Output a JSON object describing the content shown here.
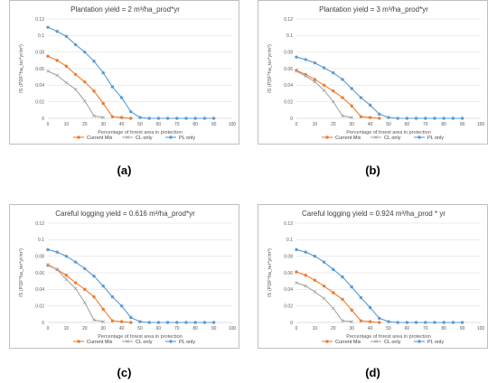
{
  "colors": {
    "current_mix": "#ED7D31",
    "cl_only": "#A5A5A5",
    "pl_only": "#5B9BD5",
    "grid": "#d9d9d9"
  },
  "panels": [
    {
      "caption": "(a)"
    },
    {
      "caption": "(b)"
    },
    {
      "caption": "(c)"
    },
    {
      "caption": "(d)"
    }
  ],
  "chart_data": [
    {
      "type": "line",
      "title": "Plantation yield = 2 m³/ha_prod*yr",
      "xlabel": "Percentage of forest area in protection",
      "ylabel": "IS (PDF*ha_ter*yr/m³)",
      "xlim": [
        0,
        100
      ],
      "ylim": [
        0,
        0.12
      ],
      "xticks": [
        "0",
        "10",
        "20",
        "30",
        "40",
        "50",
        "60",
        "70",
        "80",
        "90",
        "100"
      ],
      "yticks": [
        "0",
        "0.02",
        "0.04",
        "0.06",
        "0.08",
        "0.1",
        "0.12"
      ],
      "grid": true,
      "legend": "bottom",
      "series": [
        {
          "name": "Current Mix",
          "color_key": "current_mix",
          "marker": "circle",
          "x": [
            0,
            5,
            10,
            15,
            20,
            25,
            30,
            35,
            40,
            45
          ],
          "y": [
            0.075,
            0.07,
            0.063,
            0.053,
            0.044,
            0.033,
            0.018,
            0.002,
            0.001,
            0.0
          ]
        },
        {
          "name": "CL only",
          "color_key": "cl_only",
          "marker": "x",
          "x": [
            0,
            5,
            10,
            15,
            20,
            25,
            30
          ],
          "y": [
            0.057,
            0.052,
            0.043,
            0.035,
            0.021,
            0.003,
            0.001
          ]
        },
        {
          "name": "PL only",
          "color_key": "pl_only",
          "marker": "circle",
          "x": [
            0,
            5,
            10,
            15,
            20,
            25,
            30,
            35,
            40,
            45,
            50,
            55,
            60,
            65,
            70,
            75,
            80,
            85,
            90
          ],
          "y": [
            0.11,
            0.105,
            0.099,
            0.089,
            0.08,
            0.069,
            0.055,
            0.038,
            0.025,
            0.008,
            0.001,
            0.0,
            0.0,
            0.0,
            0.0,
            0.0,
            0.0,
            0.0,
            0.0
          ]
        }
      ]
    },
    {
      "type": "line",
      "title": "Plantation yield = 3 m³/ha_prod*yr",
      "xlabel": "Percentage of forest area in protection",
      "ylabel": "IS (PDF*ha_ter*yr/m³)",
      "xlim": [
        0,
        100
      ],
      "ylim": [
        0,
        0.12
      ],
      "xticks": [
        "0",
        "10",
        "20",
        "30",
        "40",
        "50",
        "60",
        "70",
        "80",
        "90",
        "100"
      ],
      "yticks": [
        "0",
        "0.02",
        "0.04",
        "0.06",
        "0.08",
        "0.1",
        "0.12"
      ],
      "grid": true,
      "legend": "bottom",
      "series": [
        {
          "name": "Current Mix",
          "color_key": "current_mix",
          "marker": "circle",
          "x": [
            0,
            5,
            10,
            15,
            20,
            25,
            30,
            35,
            40,
            45
          ],
          "y": [
            0.058,
            0.053,
            0.047,
            0.04,
            0.033,
            0.025,
            0.015,
            0.002,
            0.001,
            0.0
          ]
        },
        {
          "name": "CL only",
          "color_key": "cl_only",
          "marker": "x",
          "x": [
            0,
            5,
            10,
            15,
            20,
            25,
            30
          ],
          "y": [
            0.057,
            0.051,
            0.044,
            0.034,
            0.02,
            0.003,
            0.001
          ]
        },
        {
          "name": "PL only",
          "color_key": "pl_only",
          "marker": "circle",
          "x": [
            0,
            5,
            10,
            15,
            20,
            25,
            30,
            35,
            40,
            45,
            50,
            55,
            60,
            65,
            70,
            75,
            80,
            85,
            90
          ],
          "y": [
            0.074,
            0.071,
            0.067,
            0.061,
            0.055,
            0.047,
            0.036,
            0.025,
            0.016,
            0.005,
            0.001,
            0.0,
            0.0,
            0.0,
            0.0,
            0.0,
            0.0,
            0.0,
            0.0
          ]
        }
      ]
    },
    {
      "type": "line",
      "title": "Careful logging yield = 0.616 m³/ha_prod*yr",
      "xlabel": "Percentage of forest area in protection",
      "ylabel": "IS (PDF*ha_ter*yr/m³)",
      "xlim": [
        0,
        100
      ],
      "ylim": [
        0,
        0.12
      ],
      "xticks": [
        "0",
        "10",
        "20",
        "30",
        "40",
        "50",
        "60",
        "70",
        "80",
        "90",
        "100"
      ],
      "yticks": [
        "0",
        "0.02",
        "0.04",
        "0.06",
        "0.08",
        "0.1",
        "0.12"
      ],
      "grid": true,
      "legend": "bottom",
      "series": [
        {
          "name": "Current Mix",
          "color_key": "current_mix",
          "marker": "circle",
          "x": [
            0,
            5,
            10,
            15,
            20,
            25,
            30,
            35,
            40,
            45
          ],
          "y": [
            0.069,
            0.064,
            0.057,
            0.048,
            0.04,
            0.031,
            0.016,
            0.002,
            0.001,
            0.0
          ]
        },
        {
          "name": "CL only",
          "color_key": "cl_only",
          "marker": "x",
          "x": [
            0,
            5,
            10,
            15,
            20,
            25,
            30
          ],
          "y": [
            0.07,
            0.064,
            0.052,
            0.041,
            0.024,
            0.003,
            0.001
          ]
        },
        {
          "name": "PL only",
          "color_key": "pl_only",
          "marker": "circle",
          "x": [
            0,
            5,
            10,
            15,
            20,
            25,
            30,
            35,
            40,
            45,
            50,
            55,
            60,
            65,
            70,
            75,
            80,
            85,
            90
          ],
          "y": [
            0.088,
            0.085,
            0.08,
            0.073,
            0.065,
            0.056,
            0.044,
            0.031,
            0.02,
            0.006,
            0.001,
            0.0,
            0.0,
            0.0,
            0.0,
            0.0,
            0.0,
            0.0,
            0.0
          ]
        }
      ]
    },
    {
      "type": "line",
      "title": "Careful logging yield = 0.924 m³/ha_prod * yr",
      "xlabel": "Percentage of forest area in protection",
      "ylabel": "IS (PDF*ha_ter*yr/m³)",
      "xlim": [
        0,
        100
      ],
      "ylim": [
        0,
        0.12
      ],
      "xticks": [
        "0",
        "10",
        "20",
        "30",
        "40",
        "50",
        "60",
        "70",
        "80",
        "90",
        "100"
      ],
      "yticks": [
        "0",
        "0.02",
        "0.04",
        "0.06",
        "0.08",
        "0.1",
        "0.12"
      ],
      "grid": true,
      "legend": "bottom",
      "series": [
        {
          "name": "Current Mix",
          "color_key": "current_mix",
          "marker": "circle",
          "x": [
            0,
            5,
            10,
            15,
            20,
            25,
            30,
            35,
            40,
            45
          ],
          "y": [
            0.061,
            0.057,
            0.051,
            0.044,
            0.036,
            0.028,
            0.015,
            0.002,
            0.001,
            0.0
          ]
        },
        {
          "name": "CL only",
          "color_key": "cl_only",
          "marker": "x",
          "x": [
            0,
            5,
            10,
            15,
            20,
            25,
            30
          ],
          "y": [
            0.048,
            0.044,
            0.037,
            0.029,
            0.017,
            0.002,
            0.001
          ]
        },
        {
          "name": "PL only",
          "color_key": "pl_only",
          "marker": "circle",
          "x": [
            0,
            5,
            10,
            15,
            20,
            25,
            30,
            35,
            40,
            45,
            50,
            55,
            60,
            65,
            70,
            75,
            80,
            85,
            90
          ],
          "y": [
            0.088,
            0.085,
            0.08,
            0.073,
            0.064,
            0.055,
            0.043,
            0.03,
            0.018,
            0.005,
            0.001,
            0.0,
            0.0,
            0.0,
            0.0,
            0.0,
            0.0,
            0.0,
            0.0
          ]
        }
      ]
    }
  ]
}
